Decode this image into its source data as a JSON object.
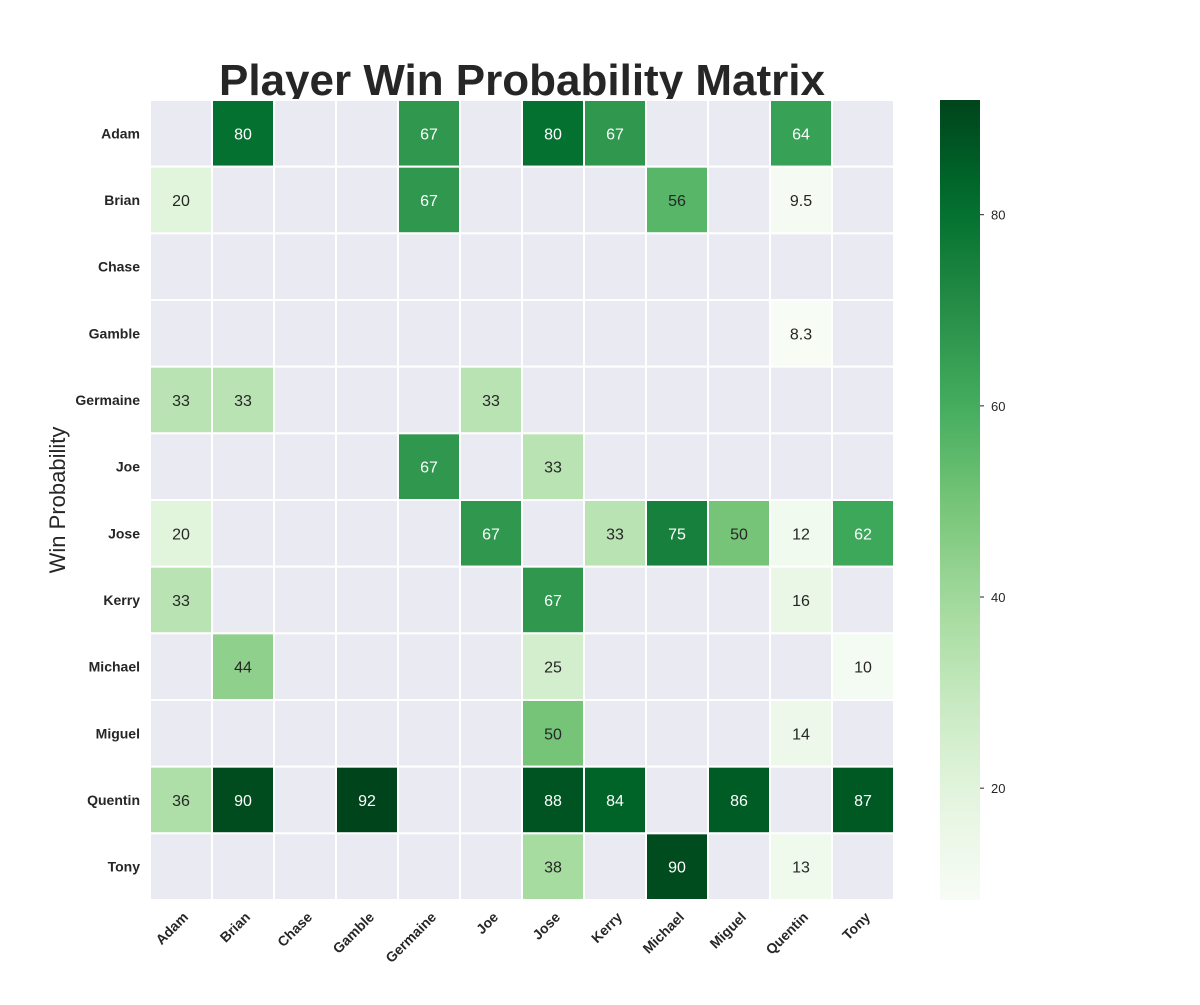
{
  "chart_data": {
    "type": "heatmap",
    "title": "Player Win Probability Matrix",
    "ylabel": "Win Probability",
    "xlabel": "",
    "rows": [
      "Adam",
      "Brian",
      "Chase",
      "Gamble",
      "Germaine",
      "Joe",
      "Jose",
      "Kerry",
      "Michael",
      "Miguel",
      "Quentin",
      "Tony"
    ],
    "columns": [
      "Adam",
      "Brian",
      "Chase",
      "Gamble",
      "Germaine",
      "Joe",
      "Jose",
      "Kerry",
      "Michael",
      "Miguel",
      "Quentin",
      "Tony"
    ],
    "values": [
      [
        null,
        80,
        null,
        null,
        67,
        null,
        80,
        67,
        null,
        null,
        64,
        null
      ],
      [
        20,
        null,
        null,
        null,
        67,
        null,
        null,
        null,
        56,
        null,
        9.5,
        null
      ],
      [
        null,
        null,
        null,
        null,
        null,
        null,
        null,
        null,
        null,
        null,
        null,
        null
      ],
      [
        null,
        null,
        null,
        null,
        null,
        null,
        null,
        null,
        null,
        null,
        8.3,
        null
      ],
      [
        33,
        33,
        null,
        null,
        null,
        33,
        null,
        null,
        null,
        null,
        null,
        null
      ],
      [
        null,
        null,
        null,
        null,
        67,
        null,
        33,
        null,
        null,
        null,
        null,
        null
      ],
      [
        20,
        null,
        null,
        null,
        null,
        67,
        null,
        33,
        75,
        50,
        12,
        62
      ],
      [
        33,
        null,
        null,
        null,
        null,
        null,
        67,
        null,
        null,
        null,
        16,
        null
      ],
      [
        null,
        44,
        null,
        null,
        null,
        null,
        25,
        null,
        null,
        null,
        null,
        10
      ],
      [
        null,
        null,
        null,
        null,
        null,
        null,
        50,
        null,
        null,
        null,
        14,
        null
      ],
      [
        36,
        90,
        null,
        92,
        null,
        null,
        88,
        84,
        null,
        86,
        null,
        87
      ],
      [
        null,
        null,
        null,
        null,
        null,
        null,
        38,
        null,
        90,
        null,
        13,
        null
      ]
    ],
    "colorbar": {
      "colormap": "Greens",
      "vmin": 8.3,
      "vmax": 92,
      "ticks": [
        20,
        40,
        60,
        80
      ]
    },
    "missing_color": "#eaeaf2",
    "grid_line_color": "#ffffff"
  }
}
